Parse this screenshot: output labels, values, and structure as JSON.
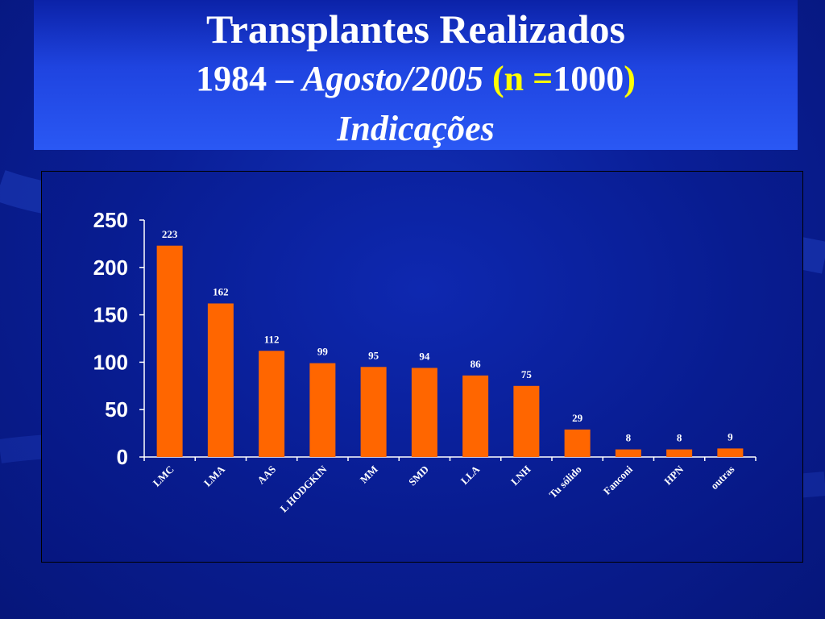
{
  "title": {
    "line1": "Transplantes Realizados",
    "line2_a": "1984 – ",
    "line2_b": "Agosto/2005",
    "line2_c": "(n =",
    "line2_d": "1000",
    "line2_e": ")",
    "line3": "Indicações"
  },
  "colors": {
    "bar": "#ff6600",
    "axis": "#ffffff",
    "highlight": "#ffff00"
  },
  "chart_data": {
    "type": "bar",
    "categories": [
      "LMC",
      "LMA",
      "AAS",
      "L HODGKIN",
      "MM",
      "SMD",
      "LLA",
      "LNH",
      "Tu sólido",
      "Fanconi",
      "HPN",
      "outras"
    ],
    "values": [
      223,
      162,
      112,
      99,
      95,
      94,
      86,
      75,
      29,
      8,
      8,
      9
    ],
    "ylim": [
      0,
      250
    ],
    "yticks": [
      0,
      50,
      100,
      150,
      200,
      250
    ],
    "title": "",
    "xlabel": "",
    "ylabel": "",
    "grid": false,
    "legend": false
  }
}
